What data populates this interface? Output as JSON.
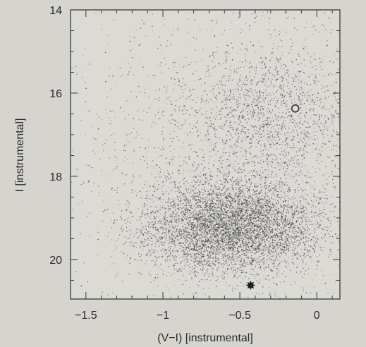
{
  "chart_data": {
    "type": "scatter",
    "title": "",
    "xlabel": "(V−I) [instrumental]",
    "ylabel": "I [instrumental]",
    "xlim": [
      -1.6,
      0.15
    ],
    "ylim": [
      20.95,
      14.0
    ],
    "y_inverted": true,
    "grid": false,
    "legend": "none",
    "x_ticks": [
      -1.5,
      -1,
      -0.5,
      0
    ],
    "x_tick_labels": [
      "−1.5",
      "−1",
      "−0.5",
      "0"
    ],
    "x_minor_step": 0.1,
    "y_ticks": [
      14,
      16,
      18,
      20
    ],
    "y_tick_labels": [
      "14",
      "16",
      "18",
      "20"
    ],
    "y_minor_step": 0.5,
    "point_color": "#3c3c3c",
    "density_regions": [
      {
        "description": "main cloud",
        "center": [
          -0.55,
          19.2
        ],
        "spread": [
          0.28,
          0.55
        ],
        "weight": 0.62
      },
      {
        "description": "upper red clump",
        "center": [
          -0.25,
          16.5
        ],
        "spread": [
          0.28,
          0.9
        ],
        "weight": 0.16
      },
      {
        "description": "extended wash",
        "center": [
          -0.55,
          17.6
        ],
        "spread": [
          0.55,
          1.9
        ],
        "weight": 0.22
      }
    ],
    "highlighted_points": [
      {
        "marker": "open-circle",
        "x": -0.14,
        "y": 16.37
      },
      {
        "marker": "filled-star",
        "x": -0.43,
        "y": 20.62
      }
    ]
  }
}
